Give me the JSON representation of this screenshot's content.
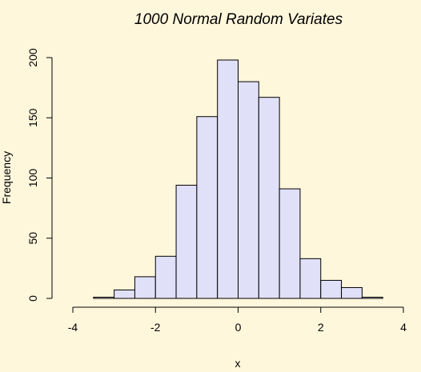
{
  "chart_data": {
    "type": "bar",
    "title": "1000 Normal Random Variates",
    "xlabel": "x",
    "ylabel": "Frequency",
    "xlim": [
      -4,
      4
    ],
    "ylim": [
      0,
      200
    ],
    "x_ticks": [
      -4,
      -2,
      0,
      2,
      4
    ],
    "y_ticks": [
      0,
      50,
      100,
      150,
      200
    ],
    "bins": [
      {
        "start": -3.5,
        "end": -3.0,
        "count": 1
      },
      {
        "start": -3.0,
        "end": -2.5,
        "count": 7
      },
      {
        "start": -2.5,
        "end": -2.0,
        "count": 18
      },
      {
        "start": -2.0,
        "end": -1.5,
        "count": 35
      },
      {
        "start": -1.5,
        "end": -1.0,
        "count": 94
      },
      {
        "start": -1.0,
        "end": -0.5,
        "count": 151
      },
      {
        "start": -0.5,
        "end": 0.0,
        "count": 198
      },
      {
        "start": 0.0,
        "end": 0.5,
        "count": 180
      },
      {
        "start": 0.5,
        "end": 1.0,
        "count": 167
      },
      {
        "start": 1.0,
        "end": 1.5,
        "count": 91
      },
      {
        "start": 1.5,
        "end": 2.0,
        "count": 33
      },
      {
        "start": 2.0,
        "end": 2.5,
        "count": 15
      },
      {
        "start": 2.5,
        "end": 3.0,
        "count": 9
      },
      {
        "start": 3.0,
        "end": 3.5,
        "count": 1
      }
    ],
    "bar_color": "#e0e0f8",
    "background_color": "#fff7dc",
    "grid": false,
    "legend": "none"
  }
}
